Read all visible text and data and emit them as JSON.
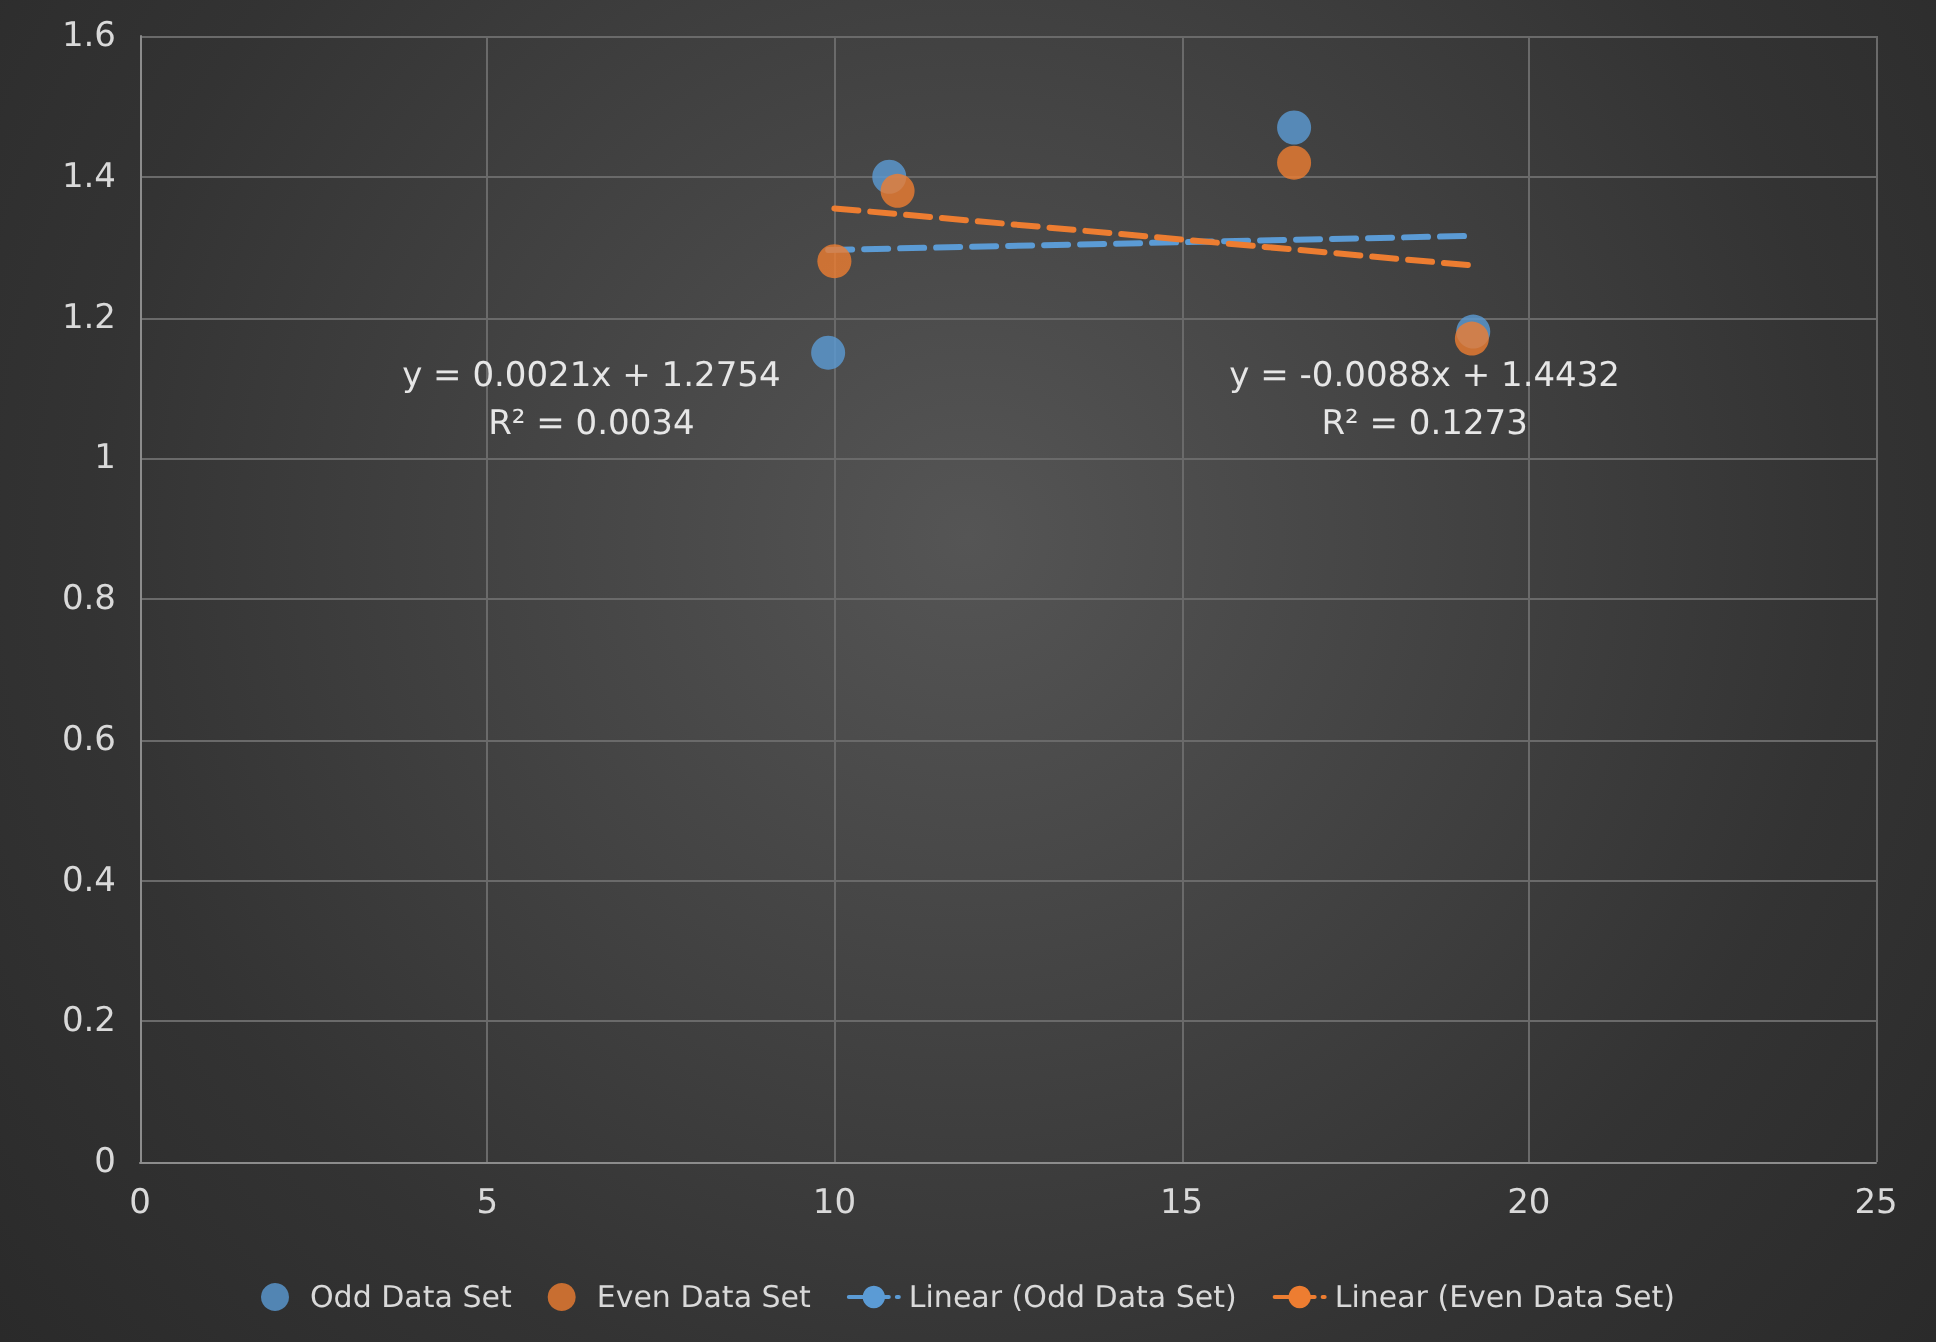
{
  "chart_data": {
    "type": "scatter",
    "series": [
      {
        "name": "Odd Data Set",
        "color": "#5b9bd5",
        "x": [
          9.91,
          10.79,
          16.62,
          19.2
        ],
        "values": [
          1.15,
          1.4,
          1.47,
          1.18
        ]
      },
      {
        "name": "Even Data Set",
        "color": "#ed7d31",
        "x": [
          10.0,
          10.91,
          16.62,
          19.18
        ],
        "values": [
          1.28,
          1.38,
          1.42,
          1.17
        ]
      },
      {
        "name": "Linear (Odd Data Set)",
        "type": "line",
        "color": "#5b9bd5",
        "x": [
          9.91,
          19.2
        ],
        "values": [
          1.296,
          1.316
        ],
        "line_style": "dashed",
        "marker": "none"
      },
      {
        "name": "Linear (Even Data Set)",
        "type": "line",
        "color": "#ed7d31",
        "x": [
          10.0,
          19.18
        ],
        "values": [
          1.355,
          1.274
        ],
        "line_style": "dashed",
        "marker": "none"
      }
    ],
    "annotations": [
      "y = 0.0021x + 1.2754\nR² = 0.0034",
      "y = -0.0088x + 1.4432\nR² = 0.1273"
    ],
    "xlim": [
      0,
      25
    ],
    "xticks": [
      0,
      5,
      10,
      15,
      20,
      25
    ],
    "ylim": [
      0,
      1.6
    ],
    "yticks": [
      0,
      0.2,
      0.4,
      0.6,
      0.8,
      1,
      1.2,
      1.4,
      1.6
    ],
    "grid": true,
    "marker": "circle",
    "legend": "bottom"
  }
}
